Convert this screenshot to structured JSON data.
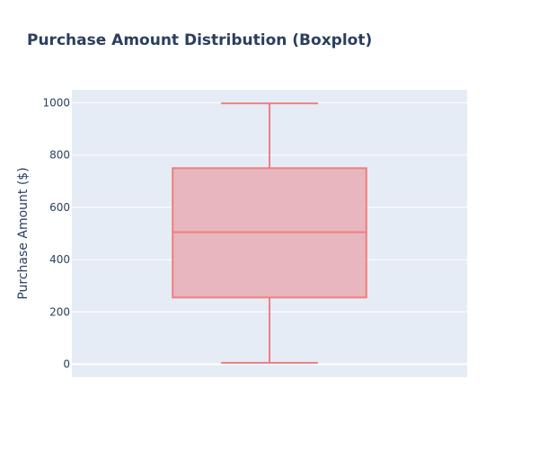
{
  "chart_data": {
    "type": "box",
    "title": "Purchase Amount Distribution (Boxplot)",
    "xlabel": "",
    "ylabel": "Purchase Amount ($)",
    "ylim": [
      -50,
      1050
    ],
    "yticks": [
      0,
      200,
      400,
      600,
      800,
      1000
    ],
    "grid": true,
    "legend": "none",
    "series": [
      {
        "min": 5,
        "q1": 255,
        "median": 505,
        "q3": 750,
        "max": 998
      }
    ]
  },
  "colors": {
    "plot_background": "#e5ecf6",
    "grid": "#ffffff",
    "text": "#2a3f5f",
    "box_line": "#f07f7f",
    "box_fill": "#e8b0b8"
  }
}
